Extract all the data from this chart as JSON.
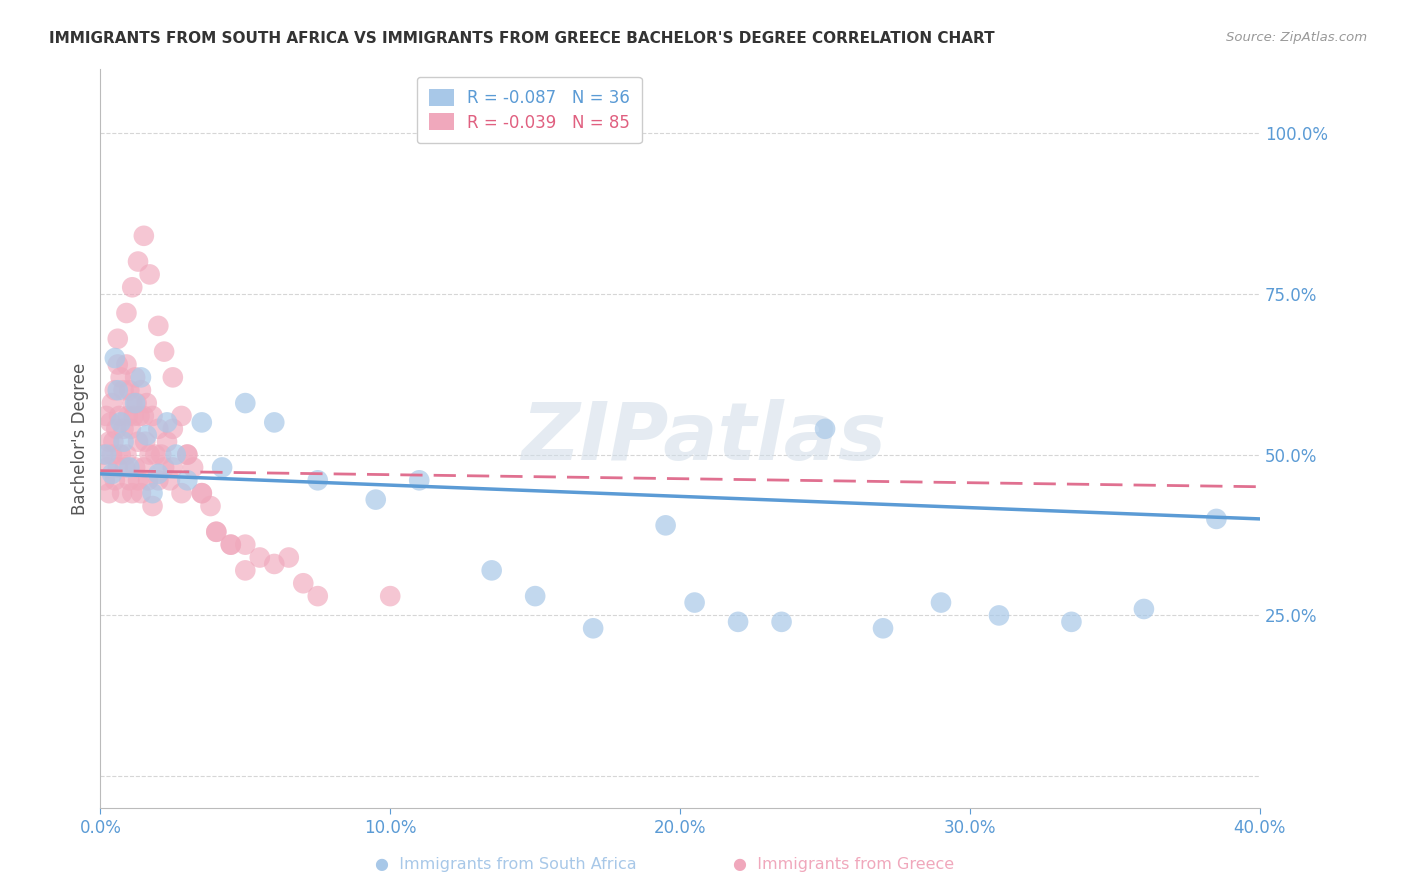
{
  "title": "IMMIGRANTS FROM SOUTH AFRICA VS IMMIGRANTS FROM GREECE BACHELOR'S DEGREE CORRELATION CHART",
  "source": "Source: ZipAtlas.com",
  "ylabel": "Bachelor's Degree",
  "xlim": [
    0.0,
    40.0
  ],
  "ylim": [
    -5.0,
    110.0
  ],
  "color_south_africa": "#a8c8e8",
  "color_greece": "#f0a8bc",
  "trendline_sa_color": "#5b9bd5",
  "trendline_gr_color": "#e07090",
  "axis_color": "#5b9bd5",
  "grid_color": "#cccccc",
  "background_color": "#ffffff",
  "sa_x": [
    0.2,
    0.4,
    0.5,
    0.6,
    0.7,
    0.8,
    1.0,
    1.2,
    1.4,
    1.6,
    1.8,
    2.0,
    2.3,
    2.6,
    3.0,
    3.5,
    4.2,
    5.0,
    6.0,
    7.5,
    9.5,
    11.0,
    13.5,
    15.0,
    17.0,
    20.5,
    22.0,
    23.5,
    27.0,
    29.0,
    31.0,
    33.5,
    36.0,
    38.5,
    25.0,
    19.5
  ],
  "sa_y": [
    50.0,
    47.0,
    65.0,
    60.0,
    55.0,
    52.0,
    48.0,
    58.0,
    62.0,
    53.0,
    44.0,
    47.0,
    55.0,
    50.0,
    46.0,
    55.0,
    48.0,
    58.0,
    55.0,
    46.0,
    43.0,
    46.0,
    32.0,
    28.0,
    23.0,
    27.0,
    24.0,
    24.0,
    23.0,
    27.0,
    25.0,
    24.0,
    26.0,
    40.0,
    54.0,
    39.0
  ],
  "gr_x": [
    0.1,
    0.15,
    0.2,
    0.25,
    0.3,
    0.3,
    0.35,
    0.4,
    0.4,
    0.45,
    0.5,
    0.5,
    0.55,
    0.6,
    0.6,
    0.65,
    0.7,
    0.7,
    0.75,
    0.8,
    0.8,
    0.85,
    0.9,
    0.9,
    0.95,
    1.0,
    1.0,
    1.05,
    1.1,
    1.1,
    1.15,
    1.2,
    1.2,
    1.25,
    1.3,
    1.3,
    1.35,
    1.4,
    1.4,
    1.5,
    1.5,
    1.55,
    1.6,
    1.65,
    1.7,
    1.8,
    1.8,
    1.9,
    2.0,
    2.0,
    2.1,
    2.2,
    2.3,
    2.4,
    2.5,
    2.5,
    2.8,
    3.0,
    3.2,
    3.5,
    4.0,
    4.5,
    5.0,
    5.5,
    6.5,
    7.0,
    0.6,
    0.9,
    1.1,
    1.3,
    1.5,
    1.7,
    2.0,
    2.2,
    2.5,
    2.8,
    3.0,
    3.5,
    4.0,
    5.0,
    7.5,
    10.0,
    3.8,
    4.5,
    6.0
  ],
  "gr_y": [
    50.0,
    46.0,
    56.0,
    48.0,
    52.0,
    44.0,
    55.0,
    58.0,
    50.0,
    52.0,
    60.0,
    46.0,
    54.0,
    64.0,
    48.0,
    56.0,
    62.0,
    50.0,
    44.0,
    60.0,
    54.0,
    48.0,
    64.0,
    50.0,
    56.0,
    60.0,
    46.0,
    54.0,
    58.0,
    44.0,
    56.0,
    62.0,
    48.0,
    58.0,
    52.0,
    46.0,
    56.0,
    60.0,
    44.0,
    56.0,
    48.0,
    52.0,
    58.0,
    46.0,
    50.0,
    56.0,
    42.0,
    50.0,
    54.0,
    46.0,
    50.0,
    48.0,
    52.0,
    46.0,
    54.0,
    48.0,
    44.0,
    50.0,
    48.0,
    44.0,
    38.0,
    36.0,
    36.0,
    34.0,
    34.0,
    30.0,
    68.0,
    72.0,
    76.0,
    80.0,
    84.0,
    78.0,
    70.0,
    66.0,
    62.0,
    56.0,
    50.0,
    44.0,
    38.0,
    32.0,
    28.0,
    28.0,
    42.0,
    36.0,
    33.0
  ],
  "sa_trend_x": [
    0.0,
    40.0
  ],
  "sa_trend_y": [
    47.0,
    40.0
  ],
  "gr_trend_x": [
    0.0,
    40.0
  ],
  "gr_trend_y": [
    47.5,
    45.0
  ],
  "legend_sa_label": "R = -0.087   N = 36",
  "legend_gr_label": "R = -0.039   N = 85",
  "legend_sa_color_text": "#5b9bd5",
  "legend_gr_color_text": "#e06080",
  "watermark": "ZIPatlas"
}
